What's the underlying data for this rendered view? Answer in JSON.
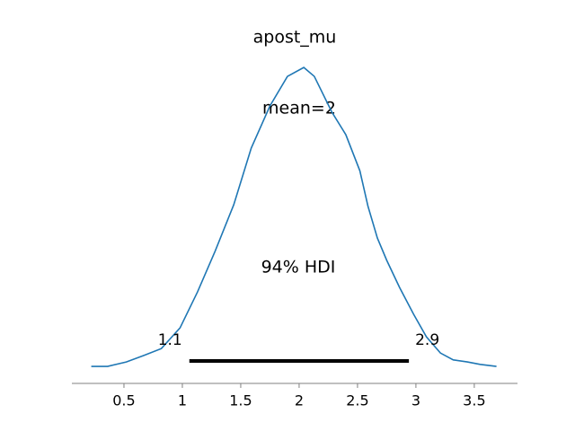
{
  "chart_data": {
    "type": "line",
    "title": "apost_mu",
    "x": [
      0.22,
      0.36,
      0.52,
      0.67,
      0.82,
      0.98,
      1.13,
      1.28,
      1.44,
      1.59,
      1.75,
      1.9,
      2.04,
      2.13,
      2.28,
      2.4,
      2.52,
      2.59,
      2.67,
      2.75,
      2.86,
      2.98,
      3.09,
      3.21,
      3.32,
      3.44,
      3.55,
      3.69
    ],
    "series": [
      {
        "color": "#1f77b4",
        "values": [
          0.042,
          0.042,
          0.053,
          0.069,
          0.086,
          0.137,
          0.226,
          0.326,
          0.441,
          0.581,
          0.685,
          0.758,
          0.78,
          0.758,
          0.67,
          0.614,
          0.525,
          0.437,
          0.359,
          0.304,
          0.237,
          0.171,
          0.115,
          0.075,
          0.058,
          0.053,
          0.047,
          0.042
        ]
      }
    ],
    "xlim": [
      0.054,
      3.87
    ],
    "ylim": [
      0,
      0.818
    ],
    "xticks": [
      0.5,
      1.0,
      1.5,
      2.0,
      2.5,
      3.0,
      3.5
    ],
    "mean_label": "mean=2",
    "hdi_label": "94% HDI",
    "hdi": {
      "values": [
        1.06,
        2.94
      ],
      "value_labels": [
        "1.1",
        "2.9"
      ],
      "color": "#000000"
    }
  }
}
